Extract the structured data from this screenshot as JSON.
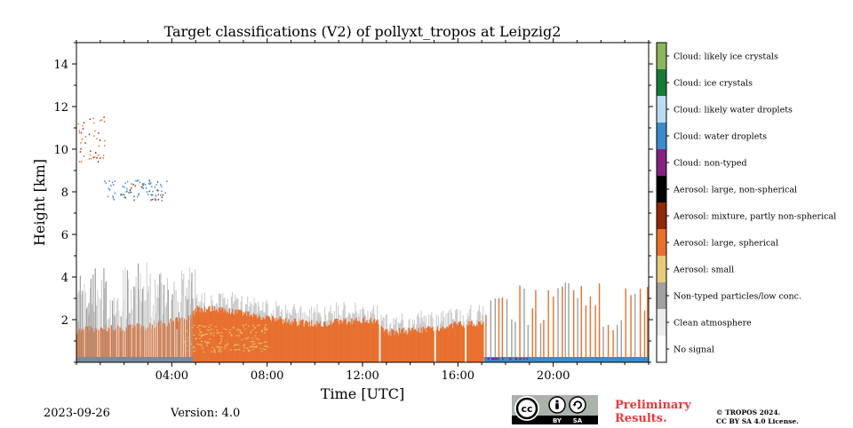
{
  "chart_data": {
    "type": "heatmap",
    "title": "Target classifications (V2) of pollyxt_tropos at Leipzig2",
    "xlabel": "Time [UTC]",
    "ylabel": "Height [km]",
    "xlim": [
      0,
      24
    ],
    "ylim": [
      0,
      15
    ],
    "xticks": [
      4,
      8,
      12,
      16,
      20
    ],
    "xtick_labels": [
      "04:00",
      "08:00",
      "12:00",
      "16:00",
      "20:00"
    ],
    "yticks": [
      2,
      4,
      6,
      8,
      10,
      12,
      14
    ],
    "ytick_labels": [
      "2",
      "4",
      "6",
      "8",
      "10",
      "12",
      "14"
    ],
    "classes": [
      {
        "label": "No signal",
        "color": "#ffffff"
      },
      {
        "label": "Clean atmosphere",
        "color": "#ececec"
      },
      {
        "label": "Non-typed particles/low conc.",
        "color": "#a0a0a0"
      },
      {
        "label": "Aerosol: small",
        "color": "#e6c97a"
      },
      {
        "label": "Aerosol: large, spherical",
        "color": "#e8702f"
      },
      {
        "label": "Aerosol: mixture, partly non-spherical",
        "color": "#8e2a05"
      },
      {
        "label": "Aerosol: large, non-spherical",
        "color": "#000000"
      },
      {
        "label": "Cloud: non-typed",
        "color": "#83237e"
      },
      {
        "label": "Cloud: water droplets",
        "color": "#3c8ccb"
      },
      {
        "label": "Cloud: likely water droplets",
        "color": "#bcdcf4"
      },
      {
        "label": "Cloud: ice crystals",
        "color": "#167b3a"
      },
      {
        "label": "Cloud: likely ice crystals",
        "color": "#8ab55e"
      }
    ],
    "aerosol_top_km": [
      [
        0,
        1.5
      ],
      [
        1,
        1.6
      ],
      [
        2,
        1.6
      ],
      [
        3,
        1.7
      ],
      [
        4,
        1.9
      ],
      [
        4.8,
        2.1
      ],
      [
        5,
        2.5
      ],
      [
        6,
        2.5
      ],
      [
        7,
        2.3
      ],
      [
        8,
        2.1
      ],
      [
        9,
        1.9
      ],
      [
        10,
        1.8
      ],
      [
        11,
        1.9
      ],
      [
        12,
        2.0
      ],
      [
        12.6,
        1.9
      ],
      [
        13,
        1.4
      ],
      [
        14,
        1.5
      ],
      [
        15,
        1.6
      ],
      [
        16,
        1.8
      ],
      [
        17,
        1.8
      ]
    ],
    "cloud_regions": [
      {
        "class": "Cloud: water droplets",
        "x": [
          1.1,
          3.8
        ],
        "y": [
          7.6,
          8.6
        ]
      },
      {
        "class": "Aerosol: large, spherical",
        "x": [
          0,
          1.2
        ],
        "y": [
          9.4,
          11.6
        ]
      },
      {
        "class": "Cloud: water droplets",
        "x": [
          0,
          24
        ],
        "y": [
          0,
          0.25
        ]
      }
    ],
    "gaps_hours": [
      12.7,
      15.0,
      16.3
    ],
    "grid": false,
    "legend": "colorbar-right"
  },
  "footer": {
    "date": "2023-09-26",
    "version": "Version: 4.0",
    "preliminary": "Preliminary Results.",
    "copyright_line1": "© TROPOS 2024.",
    "copyright_line2": "CC BY SA 4.0 License."
  },
  "license_badge": {
    "cc": "cc",
    "by": "BY",
    "sa": "SA"
  }
}
